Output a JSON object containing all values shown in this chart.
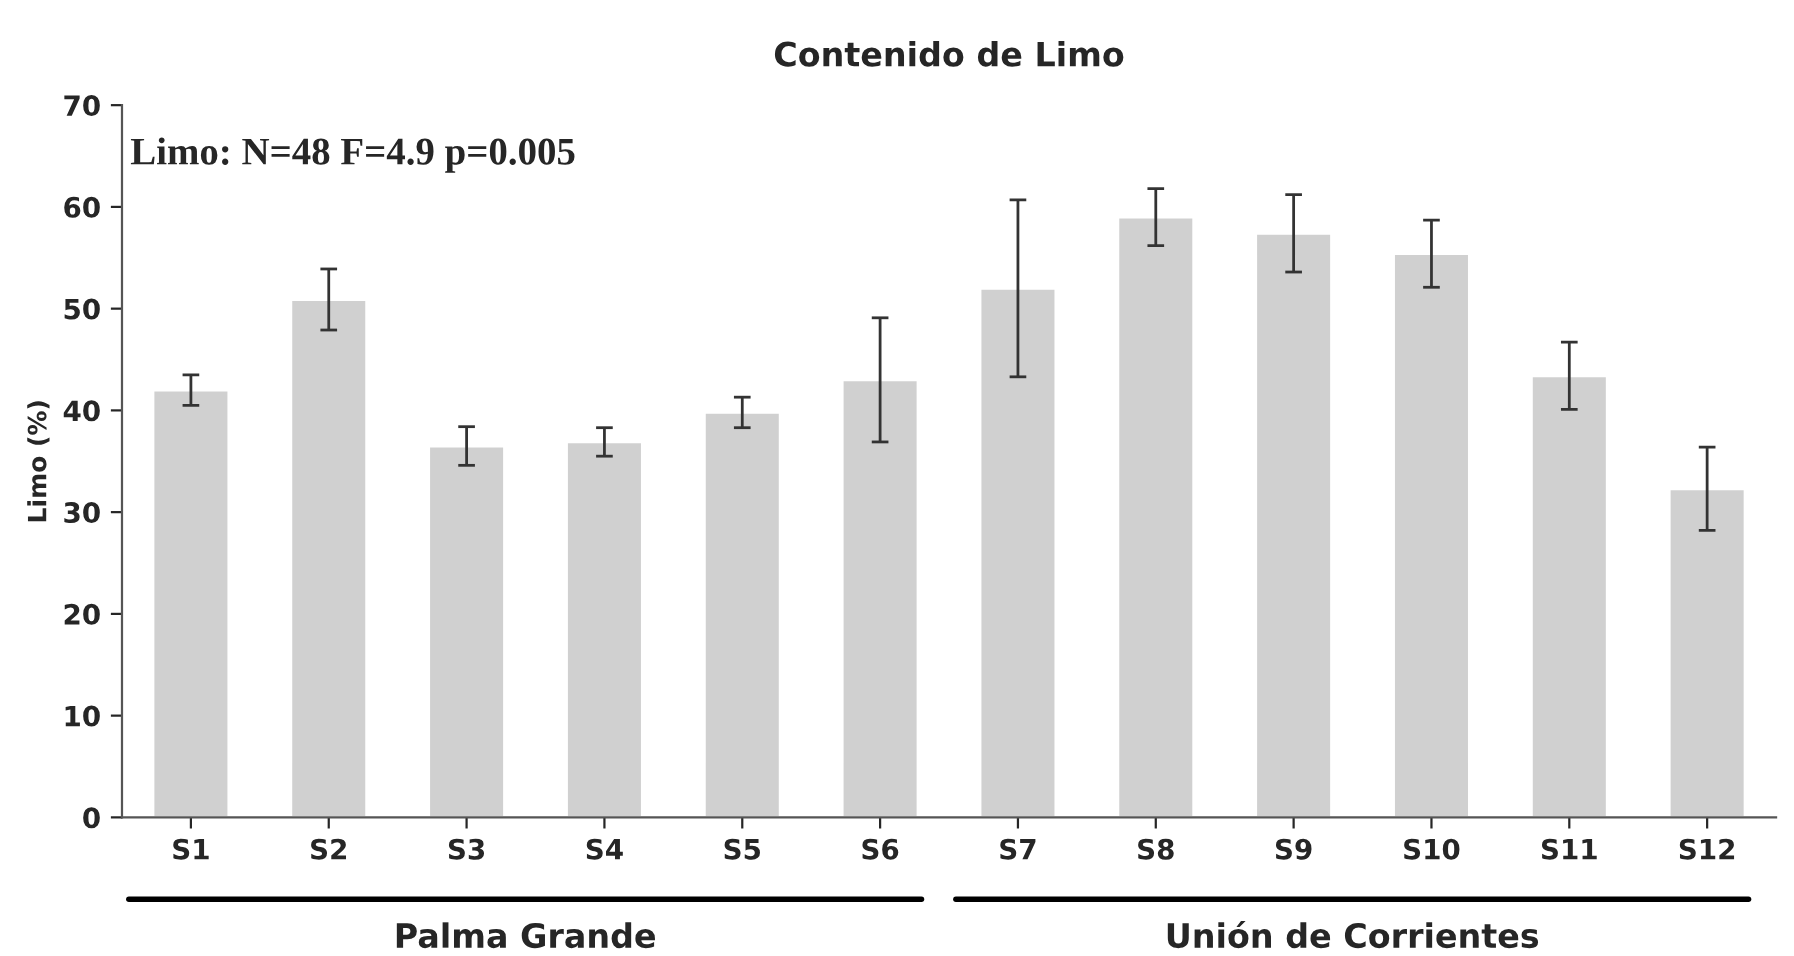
{
  "chart_data": {
    "type": "bar",
    "title": "Contenido de Limo",
    "ylabel": "Limo (%)",
    "categories": [
      "S1",
      "S2",
      "S3",
      "S4",
      "S5",
      "S6",
      "S7",
      "S8",
      "S9",
      "S10",
      "S11",
      "S12"
    ],
    "values": [
      42.0,
      50.9,
      36.5,
      36.9,
      39.8,
      43.0,
      52.0,
      59.0,
      57.4,
      55.4,
      43.4,
      32.3
    ],
    "errors": [
      1.5,
      3.0,
      1.9,
      1.4,
      1.5,
      6.1,
      8.7,
      2.8,
      3.8,
      3.3,
      3.3,
      4.1
    ],
    "color": "#d0d0d0",
    "ylim": [
      0,
      70
    ],
    "yticks": [
      0,
      10,
      20,
      30,
      40,
      50,
      60,
      70
    ],
    "grid": false,
    "legend": false,
    "annotations": [
      "Limo: N=48 F=4.9 p=0.005",
      "Palma Grande",
      "Unión de Corrientes"
    ]
  }
}
